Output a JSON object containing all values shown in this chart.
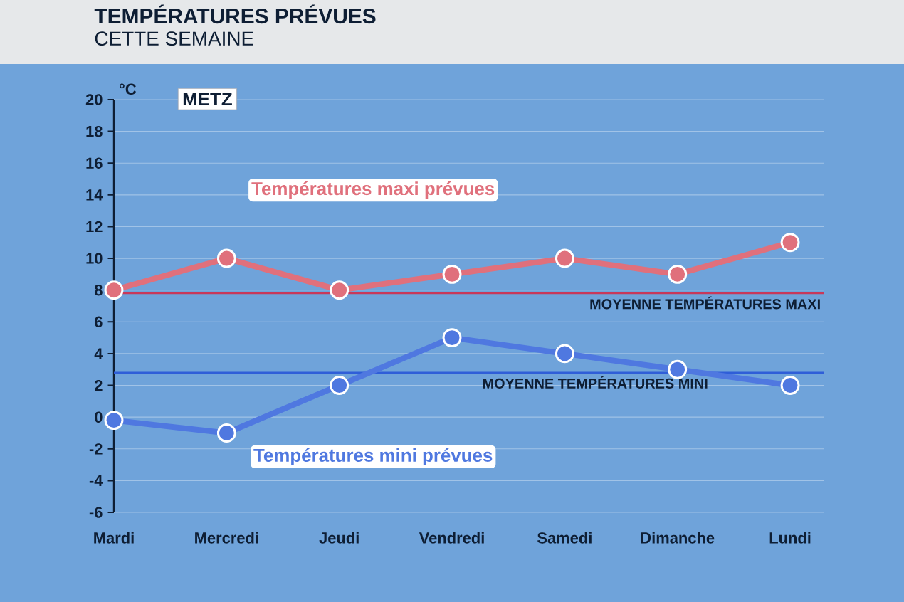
{
  "chart_data": {
    "type": "line",
    "title": "TEMPÉRATURES PRÉVUES",
    "subtitle": "CETTE SEMAINE",
    "ylabel": "°C",
    "annotations": [
      "METZ"
    ],
    "categories": [
      "Mardi",
      "Mercredi",
      "Jeudi",
      "Vendredi",
      "Samedi",
      "Dimanche",
      "Lundi"
    ],
    "series": [
      {
        "name": "Températures maxi prévues",
        "color": "#e0707c",
        "values": [
          8,
          10,
          8,
          9,
          10,
          9,
          11
        ]
      },
      {
        "name": "Températures mini prévues",
        "color": "#4f78e0",
        "values": [
          -0.2,
          -1,
          2,
          5,
          4,
          3,
          2
        ]
      }
    ],
    "ref_lines": [
      {
        "axis": "y",
        "value": 7.8,
        "label": "MOYENNE TEMPÉRATURES MAXI",
        "color": "#c8385a"
      },
      {
        "axis": "y",
        "value": 2.8,
        "label": "MOYENNE TEMPÉRATURES MINI",
        "color": "#2f5ed8"
      }
    ],
    "ylim": [
      -6,
      20
    ],
    "yticks": [
      -6,
      -4,
      -2,
      0,
      2,
      4,
      6,
      8,
      10,
      12,
      14,
      16,
      18,
      20
    ],
    "grid": "y",
    "legend": false,
    "marker": "circle",
    "line_style": "solid"
  }
}
